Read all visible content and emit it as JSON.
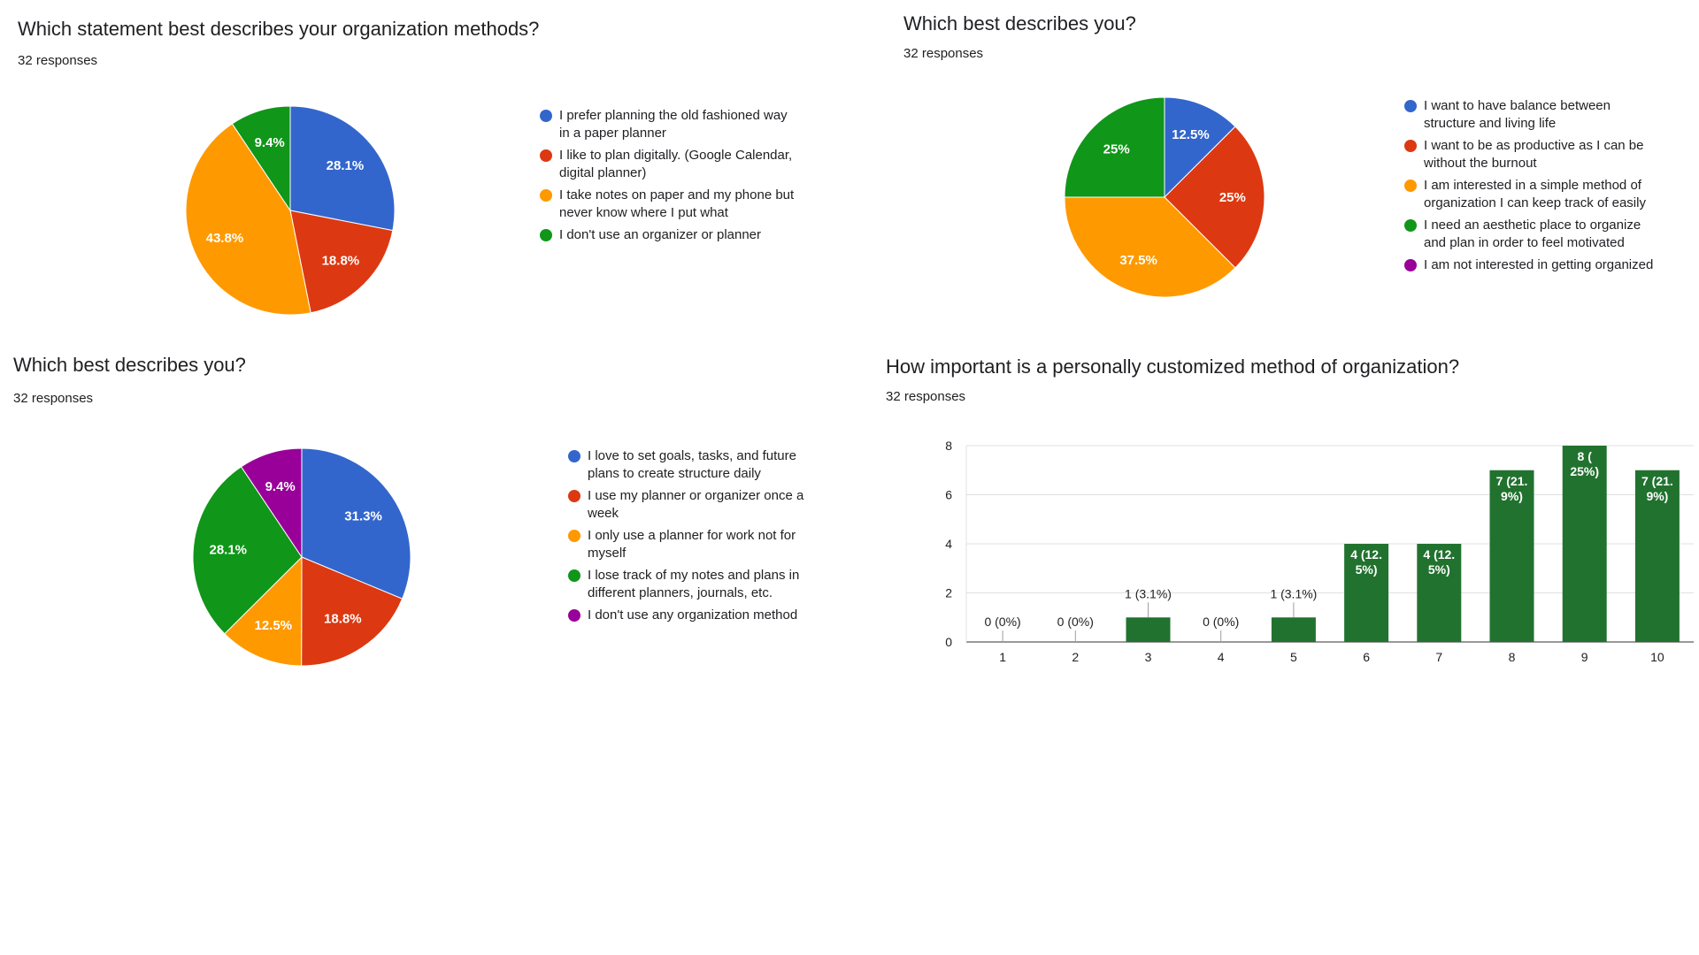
{
  "colors": {
    "blue": "#3366cc",
    "red": "#dc3912",
    "orange": "#ff9900",
    "green": "#109618",
    "purple": "#990099",
    "bar": "#21722f"
  },
  "chart_data": [
    {
      "type": "pie",
      "title": "Which statement best describes your organization methods?",
      "subtitle": "32 responses",
      "series": [
        {
          "name": "I prefer planning the old fashioned way in a paper planner",
          "value": 28.1,
          "label": "28.1%",
          "color": "#3366cc"
        },
        {
          "name": "I like to plan digitally. (Google Calendar, digital planner)",
          "value": 18.8,
          "label": "18.8%",
          "color": "#dc3912"
        },
        {
          "name": "I take notes on paper and my phone but never know where I put what",
          "value": 43.8,
          "label": "43.8%",
          "color": "#ff9900"
        },
        {
          "name": "I don't use an organizer or planner",
          "value": 9.4,
          "label": "9.4%",
          "color": "#109618"
        }
      ],
      "legend_lines": [
        [
          "I prefer planning the old fashioned way",
          "in a paper planner"
        ],
        [
          "I like to plan digitally. (Google Calendar,",
          "digital planner)"
        ],
        [
          "I take notes on paper and my phone but",
          "never know where I put what"
        ],
        [
          "I don't use an organizer or planner"
        ]
      ],
      "legend_position": "right"
    },
    {
      "type": "pie",
      "title": "Which best describes you?",
      "subtitle": "32 responses",
      "series": [
        {
          "name": "I want to have balance between structure and living life",
          "value": 12.5,
          "label": "12.5%",
          "color": "#3366cc"
        },
        {
          "name": "I want to be as productive as I can be without the burnout",
          "value": 25,
          "label": "25%",
          "color": "#dc3912"
        },
        {
          "name": "I am interested in a simple method of organization I can keep track of easily",
          "value": 37.5,
          "label": "37.5%",
          "color": "#ff9900"
        },
        {
          "name": "I need an aesthetic place to organize and plan in order to feel motivated",
          "value": 25,
          "label": "25%",
          "color": "#109618"
        },
        {
          "name": "I am not interested in getting organized",
          "value": 0,
          "label": "",
          "color": "#990099"
        }
      ],
      "legend_lines": [
        [
          "I want to have balance between",
          "structure and living life"
        ],
        [
          "I want to be as productive as I can be",
          "without the burnout"
        ],
        [
          "I am interested in a simple method of",
          "organization I can keep track of easily"
        ],
        [
          "I need an aesthetic place to organize",
          "and plan in order to feel motivated"
        ],
        [
          "I am not interested in getting organized"
        ]
      ],
      "legend_position": "right"
    },
    {
      "type": "pie",
      "title": "Which best describes you?",
      "subtitle": "32 responses",
      "series": [
        {
          "name": "I love to set goals, tasks, and future plans to create structure daily",
          "value": 31.3,
          "label": "31.3%",
          "color": "#3366cc"
        },
        {
          "name": "I use my planner or organizer once a week",
          "value": 18.8,
          "label": "18.8%",
          "color": "#dc3912"
        },
        {
          "name": "I only use a planner for work not for myself",
          "value": 12.5,
          "label": "12.5%",
          "color": "#ff9900"
        },
        {
          "name": "I lose track of my notes and plans in different planners, journals, etc.",
          "value": 28.1,
          "label": "28.1%",
          "color": "#109618"
        },
        {
          "name": "I don't use any organization method",
          "value": 9.4,
          "label": "9.4%",
          "color": "#990099"
        }
      ],
      "legend_lines": [
        [
          "I love to set goals, tasks, and future",
          "plans to create structure daily"
        ],
        [
          "I use my planner or organizer once a",
          "week"
        ],
        [
          "I only use a planner for work not for",
          "myself"
        ],
        [
          "I lose track of my notes and plans in",
          "different planners, journals, etc."
        ],
        [
          "I don't use any organization method"
        ]
      ],
      "legend_position": "right"
    },
    {
      "type": "bar",
      "title": "How important is a personally customized method of organization?",
      "subtitle": "32 responses",
      "categories": [
        "1",
        "2",
        "3",
        "4",
        "5",
        "6",
        "7",
        "8",
        "9",
        "10"
      ],
      "values": [
        0,
        0,
        1,
        0,
        1,
        4,
        4,
        7,
        8,
        7
      ],
      "data_labels": [
        [
          "0 (0%)"
        ],
        [
          "0 (0%)"
        ],
        [
          "1 (3.1%)"
        ],
        [
          "0 (0%)"
        ],
        [
          "1 (3.1%)"
        ],
        [
          "4 (12.",
          "5%)"
        ],
        [
          "4 (12.",
          "5%)"
        ],
        [
          "7 (21.",
          "9%)"
        ],
        [
          "8 (",
          "25%)"
        ],
        [
          "7 (21.",
          "9%)"
        ]
      ],
      "ylim": [
        0,
        8
      ],
      "yticks": [
        "0",
        "2",
        "4",
        "6",
        "8"
      ],
      "grid": true,
      "color": "#21722f"
    }
  ]
}
